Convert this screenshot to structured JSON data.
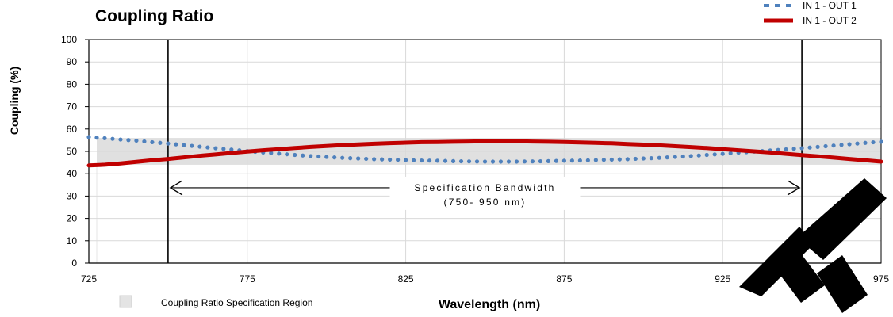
{
  "chart_data": {
    "type": "line",
    "title": "Coupling Ratio",
    "xlabel": "Wavelength (nm)",
    "ylabel": "Coupling  (%)",
    "xlim": [
      725,
      975
    ],
    "ylim": [
      0,
      100
    ],
    "xticks": [
      "725",
      "775",
      "825",
      "875",
      "925",
      "975"
    ],
    "yticks": [
      "0",
      "10",
      "20",
      "30",
      "40",
      "50",
      "60",
      "70",
      "80",
      "90",
      "100"
    ],
    "grid": true,
    "legend_position": "top-right",
    "x": [
      725,
      730,
      735,
      740,
      745,
      750,
      755,
      760,
      765,
      770,
      775,
      780,
      785,
      790,
      795,
      800,
      805,
      810,
      815,
      820,
      825,
      830,
      835,
      840,
      845,
      850,
      855,
      860,
      865,
      870,
      875,
      880,
      885,
      890,
      895,
      900,
      905,
      910,
      915,
      920,
      925,
      930,
      935,
      940,
      945,
      950,
      955,
      960,
      965,
      970,
      975
    ],
    "series": [
      {
        "name": "IN 1 - OUT 1",
        "style": "dotted",
        "color": "#4f81bd",
        "values": [
          56.4,
          55.9,
          55.3,
          54.8,
          54.1,
          53.5,
          52.8,
          52.1,
          51.4,
          50.8,
          50.1,
          49.5,
          49.0,
          48.4,
          47.9,
          47.5,
          47.1,
          46.8,
          46.5,
          46.3,
          46.1,
          45.9,
          45.8,
          45.6,
          45.5,
          45.4,
          45.4,
          45.4,
          45.5,
          45.6,
          45.8,
          45.9,
          46.1,
          46.3,
          46.5,
          46.8,
          47.1,
          47.5,
          47.9,
          48.4,
          48.9,
          49.4,
          49.9,
          50.4,
          50.9,
          51.4,
          52.0,
          52.6,
          53.2,
          53.8,
          54.3
        ]
      },
      {
        "name": "IN 1 - OUT 2",
        "style": "solid",
        "color": "#c00000",
        "values": [
          43.7,
          44.0,
          44.6,
          45.3,
          46.0,
          46.6,
          47.3,
          48.0,
          48.6,
          49.3,
          49.9,
          50.5,
          51.0,
          51.5,
          52.0,
          52.4,
          52.8,
          53.1,
          53.4,
          53.7,
          53.9,
          54.1,
          54.2,
          54.3,
          54.4,
          54.5,
          54.5,
          54.5,
          54.4,
          54.3,
          54.2,
          54.0,
          53.8,
          53.6,
          53.3,
          53.0,
          52.7,
          52.3,
          51.9,
          51.5,
          51.0,
          50.5,
          50.0,
          49.5,
          48.9,
          48.3,
          47.8,
          47.2,
          46.6,
          46.0,
          45.4
        ]
      }
    ],
    "spec_region": {
      "label": "Coupling Ratio Specification Region",
      "x_start": 725,
      "x_end": 975,
      "y_low": 44,
      "y_high": 56,
      "color": "#d9d9d9"
    },
    "spec_bandwidth": {
      "line1": "Specification Bandwidth",
      "line2": "(750- 950 nm)",
      "x_start": 750,
      "x_end": 950,
      "y": 33
    }
  }
}
